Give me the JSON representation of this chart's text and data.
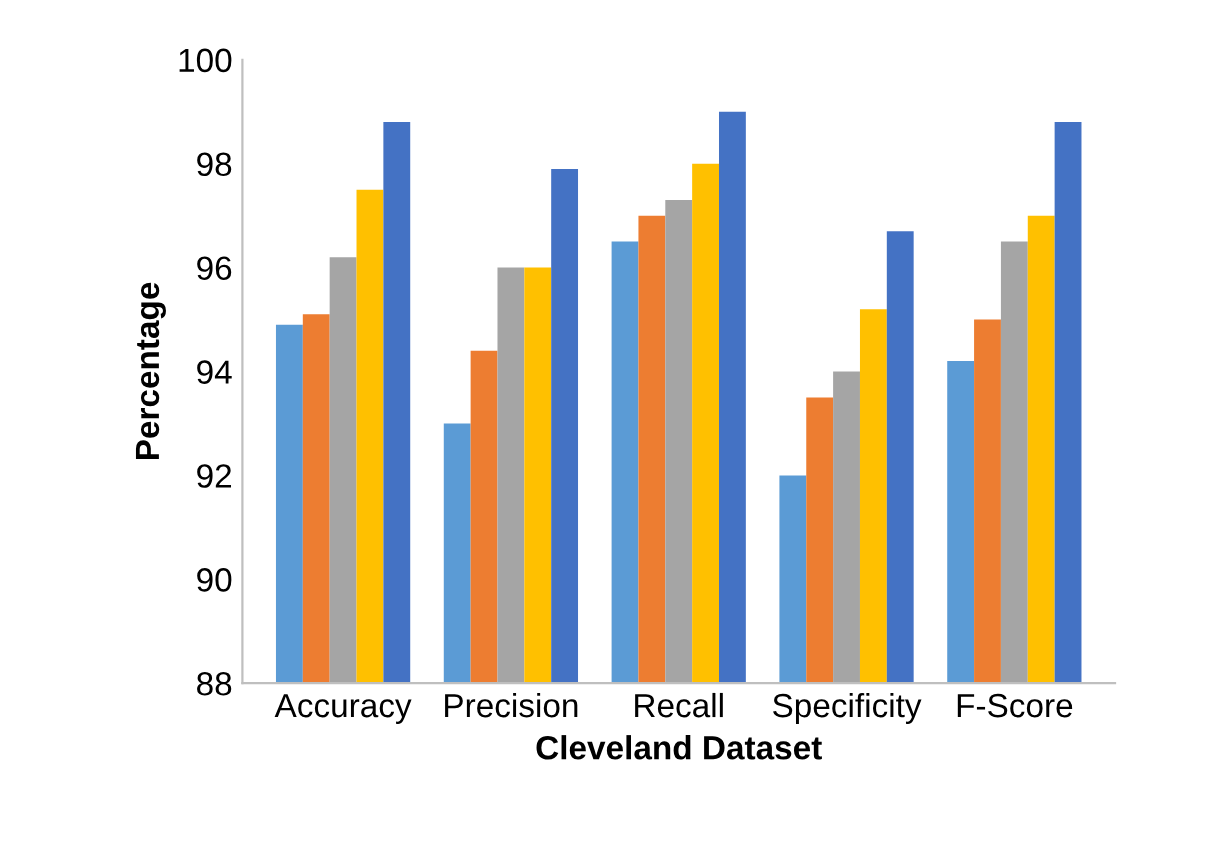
{
  "chart_data": {
    "type": "bar",
    "xlabel": "Cleveland Dataset",
    "ylabel": "Percentage",
    "categories": [
      "Accuracy",
      "Precision",
      "Recall",
      "Specificity",
      "F-Score"
    ],
    "series": [
      {
        "color": "#5b9bd5",
        "values": [
          94.9,
          93.0,
          96.5,
          92.0,
          94.2
        ]
      },
      {
        "color": "#ed7d31",
        "values": [
          95.1,
          94.4,
          97.0,
          93.5,
          95.0
        ]
      },
      {
        "color": "#a5a5a5",
        "values": [
          96.2,
          96.0,
          97.3,
          94.0,
          96.5
        ]
      },
      {
        "color": "#ffc000",
        "values": [
          97.5,
          96.0,
          98.0,
          95.2,
          97.0
        ]
      },
      {
        "color": "#4472c4",
        "values": [
          98.8,
          97.9,
          99.0,
          96.7,
          98.8
        ]
      }
    ],
    "ylim": [
      88,
      100
    ],
    "yticks": [
      88,
      90,
      92,
      94,
      96,
      98,
      100
    ],
    "grid": false,
    "legend": false
  }
}
